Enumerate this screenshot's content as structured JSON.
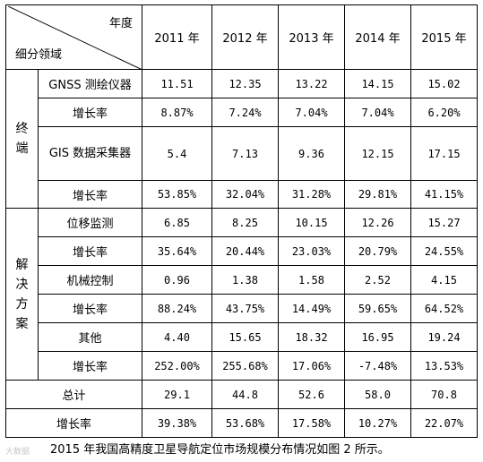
{
  "header": {
    "corner_top": "年度",
    "corner_bottom": "细分领域",
    "years": [
      "2011 年",
      "2012 年",
      "2013 年",
      "2014 年",
      "2015 年"
    ]
  },
  "groups": [
    {
      "label": "终端",
      "rows": [
        {
          "name": "GNSS 测绘仪器",
          "values": [
            "11.51",
            "12.35",
            "13.22",
            "14.15",
            "15.02"
          ]
        },
        {
          "name": "增长率",
          "values": [
            "8.87%",
            "7.24%",
            "7.04%",
            "7.04%",
            "6.20%"
          ]
        },
        {
          "name": "GIS 数据采集器",
          "values": [
            "5.4",
            "7.13",
            "9.36",
            "12.15",
            "17.15"
          ]
        },
        {
          "name": "增长率",
          "values": [
            "53.85%",
            "32.04%",
            "31.28%",
            "29.81%",
            "41.15%"
          ]
        }
      ]
    },
    {
      "label": "解决方案",
      "rows": [
        {
          "name": "位移监测",
          "values": [
            "6.85",
            "8.25",
            "10.15",
            "12.26",
            "15.27"
          ]
        },
        {
          "name": "增长率",
          "values": [
            "35.64%",
            "20.44%",
            "23.03%",
            "20.79%",
            "24.55%"
          ]
        },
        {
          "name": "机械控制",
          "values": [
            "0.96",
            "1.38",
            "1.58",
            "2.52",
            "4.15"
          ]
        },
        {
          "name": "增长率",
          "values": [
            "88.24%",
            "43.75%",
            "14.49%",
            "59.65%",
            "64.52%"
          ]
        },
        {
          "name": "其他",
          "values": [
            "4.40",
            "15.65",
            "18.32",
            "16.95",
            "19.24"
          ]
        },
        {
          "name": "增长率",
          "values": [
            "252.00%",
            "255.68%",
            "17.06%",
            "-7.48%",
            "13.53%"
          ]
        }
      ]
    }
  ],
  "totals": [
    {
      "name": "总计",
      "values": [
        "29.1",
        "44.8",
        "52.6",
        "58.0",
        "70.8"
      ]
    },
    {
      "name": "增长率",
      "values": [
        "39.38%",
        "53.68%",
        "17.58%",
        "10.27%",
        "22.07%"
      ]
    }
  ],
  "caption": "2015 年我国高精度卫星导航定位市场规模分布情况如图 2 所示。",
  "watermark": "大数据"
}
